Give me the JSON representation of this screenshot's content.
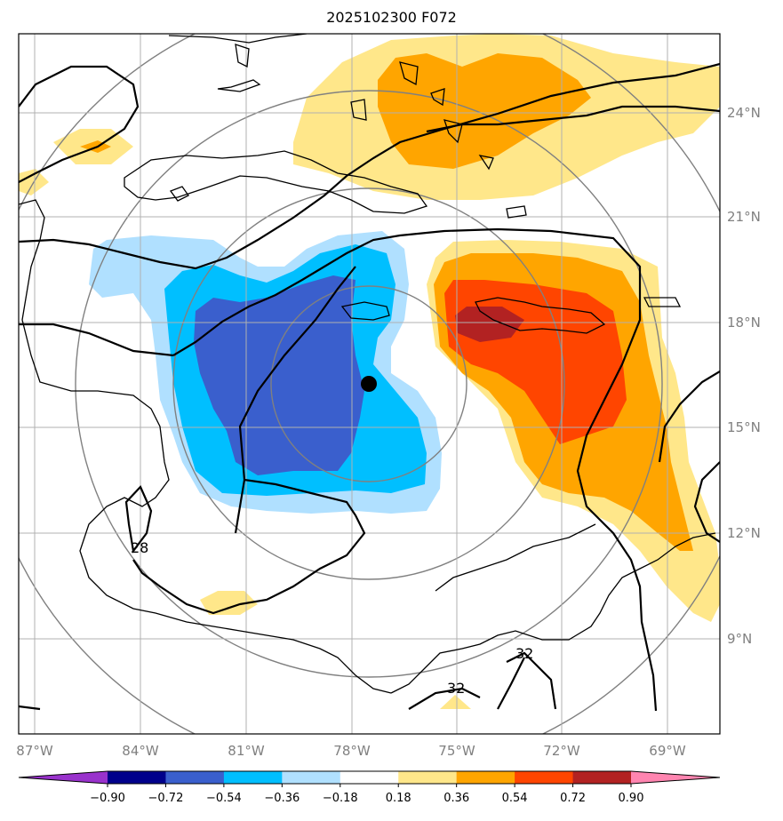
{
  "title": "2025102300 F072",
  "chart_data": {
    "type": "map",
    "title": "2025102300 F072",
    "lon_ticks": [
      "87°W",
      "84°W",
      "81°W",
      "78°W",
      "75°W",
      "72°W",
      "69°W"
    ],
    "lat_ticks": [
      "24°N",
      "21°N",
      "18°N",
      "15°N",
      "12°N",
      "9°N"
    ],
    "colorbar": {
      "levels": [
        "−0.90",
        "−0.72",
        "−0.54",
        "−0.36",
        "−0.18",
        "0.18",
        "0.36",
        "0.54",
        "0.72",
        "0.90"
      ],
      "colors": [
        "#9932cc",
        "#00008b",
        "#3a5fcd",
        "#00bfff",
        "#b0e0ff",
        "#ffffff",
        "#ffe78a",
        "#ffa500",
        "#ff4500",
        "#b22222",
        "#ff85b0"
      ]
    },
    "contour_labels": [
      "28",
      "32",
      "32"
    ],
    "center_marker": {
      "lon": -77.5,
      "lat": 16.3
    }
  }
}
